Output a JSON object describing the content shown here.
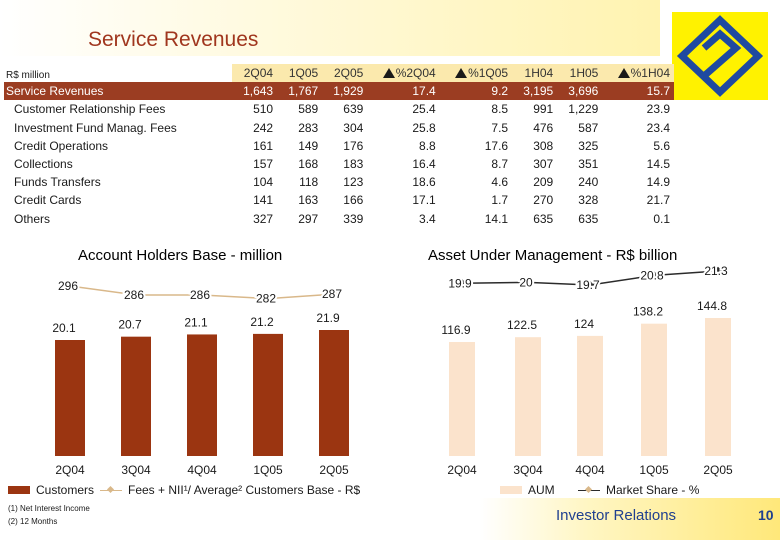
{
  "title": "Service Revenues",
  "units": "R$ million",
  "table": {
    "columns": [
      "2Q04",
      "1Q05",
      "2Q05",
      "%2Q04",
      "%1Q05",
      "1H04",
      "1H05",
      "%1H04"
    ],
    "total": {
      "label": "Service Revenues",
      "values": [
        "1,643",
        "1,767",
        "1,929",
        "17.4",
        "9.2",
        "3,195",
        "3,696",
        "15.7"
      ]
    },
    "rows": [
      {
        "label": "Customer Relationship Fees",
        "values": [
          "510",
          "589",
          "639",
          "25.4",
          "8.5",
          "991",
          "1,229",
          "23.9"
        ]
      },
      {
        "label": "Investment Fund Manag. Fees",
        "values": [
          "242",
          "283",
          "304",
          "25.8",
          "7.5",
          "476",
          "587",
          "23.4"
        ]
      },
      {
        "label": "Credit Operations",
        "values": [
          "161",
          "149",
          "176",
          "8.8",
          "17.6",
          "308",
          "325",
          "5.6"
        ]
      },
      {
        "label": "Collections",
        "values": [
          "157",
          "168",
          "183",
          "16.4",
          "8.7",
          "307",
          "351",
          "14.5"
        ]
      },
      {
        "label": "Funds Transfers",
        "values": [
          "104",
          "118",
          "123",
          "18.6",
          "4.6",
          "209",
          "240",
          "14.9"
        ]
      },
      {
        "label": "Credit Cards",
        "values": [
          "141",
          "163",
          "166",
          "17.1",
          "1.7",
          "270",
          "328",
          "21.7"
        ]
      },
      {
        "label": "Others",
        "values": [
          "327",
          "297",
          "339",
          "3.4",
          "14.1",
          "635",
          "635",
          "0.1"
        ]
      }
    ]
  },
  "chart_data": [
    {
      "type": "bar",
      "title": "Account Holders Base - million",
      "categories": [
        "2Q04",
        "3Q04",
        "4Q04",
        "1Q05",
        "2Q05"
      ],
      "series": [
        {
          "name": "Customers",
          "type": "bar",
          "values": [
            20.1,
            20.7,
            21.1,
            21.2,
            21.9
          ],
          "color": "#9b3511"
        },
        {
          "name": "Fees + NII¹/ Average² Customers Base - R$",
          "type": "line",
          "values": [
            296,
            286,
            286,
            282,
            287
          ],
          "color": "#d9b88a"
        }
      ]
    },
    {
      "type": "bar",
      "title": "Asset Under Management - R$ billion",
      "categories": [
        "2Q04",
        "3Q04",
        "4Q04",
        "1Q05",
        "2Q05"
      ],
      "series": [
        {
          "name": "AUM",
          "type": "bar",
          "values": [
            116.9,
            122.5,
            124.0,
            138.2,
            144.8
          ],
          "color": "#fbe3cc"
        },
        {
          "name": "Market Share - %",
          "type": "line",
          "values": [
            19.9,
            20.0,
            19.7,
            20.8,
            21.3
          ],
          "color": "#2b2b2b"
        }
      ]
    }
  ],
  "notes": [
    "(1) Net Interest Income",
    "(2) 12 Months"
  ],
  "footer": {
    "label": "Investor Relations",
    "page": "10"
  }
}
